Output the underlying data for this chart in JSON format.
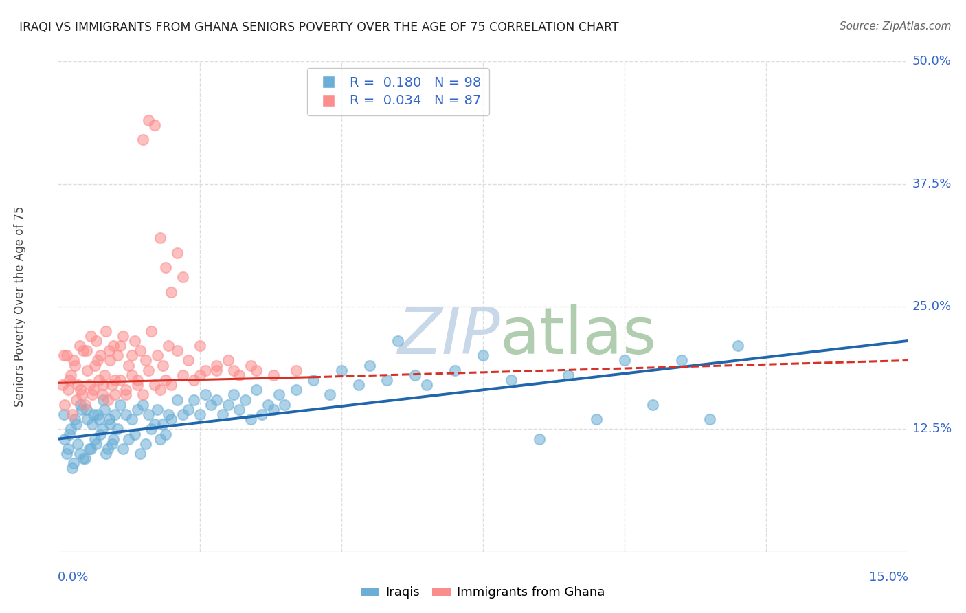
{
  "title": "IRAQI VS IMMIGRANTS FROM GHANA SENIORS POVERTY OVER THE AGE OF 75 CORRELATION CHART",
  "source": "Source: ZipAtlas.com",
  "ylabel": "Seniors Poverty Over the Age of 75",
  "xlim": [
    0.0,
    15.0
  ],
  "ylim": [
    0.0,
    50.0
  ],
  "yticks": [
    12.5,
    25.0,
    37.5,
    50.0
  ],
  "legend_r1": "R =  0.180",
  "legend_n1": "N = 98",
  "legend_r2": "R =  0.034",
  "legend_n2": "N = 87",
  "color_iraqi": "#6baed6",
  "color_ghana": "#fc8d8d",
  "color_trendline_iraqi": "#2166ac",
  "color_trendline_ghana": "#d73027",
  "iraqi_x": [
    0.1,
    0.15,
    0.2,
    0.25,
    0.3,
    0.35,
    0.4,
    0.45,
    0.5,
    0.55,
    0.6,
    0.65,
    0.7,
    0.75,
    0.8,
    0.85,
    0.9,
    0.95,
    1.0,
    1.05,
    1.1,
    1.15,
    1.2,
    1.25,
    1.3,
    1.35,
    1.4,
    1.45,
    1.5,
    1.55,
    1.6,
    1.65,
    1.7,
    1.75,
    1.8,
    1.85,
    1.9,
    1.95,
    2.0,
    2.1,
    2.2,
    2.3,
    2.4,
    2.5,
    2.6,
    2.7,
    2.8,
    2.9,
    3.0,
    3.1,
    3.2,
    3.3,
    3.4,
    3.5,
    3.6,
    3.7,
    3.8,
    3.9,
    4.0,
    4.2,
    4.5,
    4.8,
    5.0,
    5.3,
    5.5,
    5.8,
    6.0,
    6.3,
    6.5,
    7.0,
    7.5,
    8.0,
    8.5,
    9.0,
    9.5,
    10.0,
    10.5,
    11.0,
    11.5,
    12.0,
    0.12,
    0.18,
    0.22,
    0.28,
    0.32,
    0.38,
    0.42,
    0.48,
    0.52,
    0.58,
    0.62,
    0.68,
    0.72,
    0.78,
    0.82,
    0.88,
    0.92,
    0.98
  ],
  "iraqi_y": [
    14.0,
    10.0,
    12.0,
    8.5,
    13.5,
    11.0,
    15.0,
    9.5,
    14.5,
    10.5,
    13.0,
    11.5,
    14.0,
    12.0,
    15.5,
    10.0,
    13.5,
    11.0,
    14.0,
    12.5,
    15.0,
    10.5,
    14.0,
    11.5,
    13.5,
    12.0,
    14.5,
    10.0,
    15.0,
    11.0,
    14.0,
    12.5,
    13.0,
    14.5,
    11.5,
    13.0,
    12.0,
    14.0,
    13.5,
    15.5,
    14.0,
    14.5,
    15.5,
    14.0,
    16.0,
    15.0,
    15.5,
    14.0,
    15.0,
    16.0,
    14.5,
    15.5,
    13.5,
    16.5,
    14.0,
    15.0,
    14.5,
    16.0,
    15.0,
    16.5,
    17.5,
    16.0,
    18.5,
    17.0,
    19.0,
    17.5,
    21.5,
    18.0,
    17.0,
    18.5,
    20.0,
    17.5,
    11.5,
    18.0,
    13.5,
    19.5,
    15.0,
    19.5,
    13.5,
    21.0,
    11.5,
    10.5,
    12.5,
    9.0,
    13.0,
    10.0,
    14.5,
    9.5,
    13.5,
    10.5,
    14.0,
    11.0,
    13.5,
    12.5,
    14.5,
    10.5,
    13.0,
    11.5
  ],
  "ghana_x": [
    0.08,
    0.12,
    0.15,
    0.18,
    0.22,
    0.25,
    0.28,
    0.32,
    0.35,
    0.38,
    0.42,
    0.45,
    0.48,
    0.52,
    0.55,
    0.58,
    0.62,
    0.65,
    0.68,
    0.72,
    0.75,
    0.78,
    0.82,
    0.85,
    0.88,
    0.92,
    0.95,
    0.98,
    1.0,
    1.05,
    1.1,
    1.15,
    1.2,
    1.25,
    1.3,
    1.35,
    1.4,
    1.45,
    1.5,
    1.55,
    1.6,
    1.65,
    1.7,
    1.75,
    1.8,
    1.85,
    1.9,
    1.95,
    2.0,
    2.1,
    2.2,
    2.3,
    2.4,
    2.5,
    2.6,
    2.8,
    3.0,
    3.2,
    3.5,
    3.8,
    4.2,
    0.1,
    0.2,
    0.3,
    0.4,
    0.5,
    0.6,
    0.7,
    0.8,
    0.9,
    1.0,
    1.1,
    1.2,
    1.3,
    1.4,
    1.5,
    1.6,
    1.7,
    1.8,
    1.9,
    2.0,
    2.1,
    2.2,
    2.5,
    2.8,
    3.1,
    3.4
  ],
  "ghana_y": [
    17.0,
    15.0,
    20.0,
    16.5,
    18.0,
    14.0,
    19.5,
    15.5,
    17.0,
    21.0,
    16.0,
    20.5,
    15.0,
    18.5,
    17.0,
    22.0,
    16.5,
    19.0,
    21.5,
    17.5,
    20.0,
    16.0,
    18.0,
    22.5,
    15.5,
    19.5,
    17.0,
    21.0,
    16.0,
    20.0,
    17.5,
    22.0,
    16.5,
    19.0,
    18.0,
    21.5,
    17.0,
    20.5,
    16.0,
    19.5,
    18.5,
    22.5,
    17.0,
    20.0,
    16.5,
    19.0,
    17.5,
    21.0,
    17.0,
    20.5,
    18.0,
    19.5,
    17.5,
    21.0,
    18.5,
    18.5,
    19.5,
    18.0,
    18.5,
    18.0,
    18.5,
    20.0,
    17.5,
    19.0,
    16.5,
    20.5,
    16.0,
    19.5,
    17.0,
    20.5,
    17.5,
    21.0,
    16.0,
    20.0,
    17.5,
    42.0,
    44.0,
    43.5,
    32.0,
    29.0,
    26.5,
    30.5,
    28.0,
    18.0,
    19.0,
    18.5,
    19.0
  ],
  "background_color": "#ffffff",
  "grid_color": "#dddddd",
  "watermark_color": "#c8d8e8"
}
